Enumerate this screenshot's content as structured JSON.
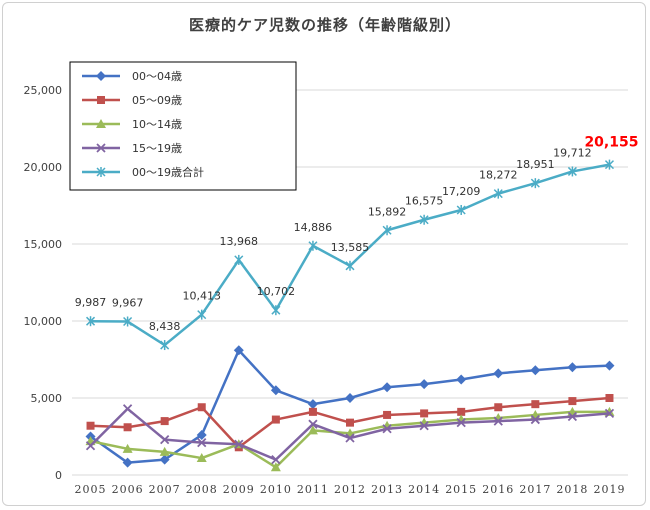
{
  "chart_data": {
    "type": "line",
    "title": "医療的ケア児数の推移（年齢階級別）",
    "xlabel": "",
    "ylabel": "",
    "ylim": [
      0,
      25000
    ],
    "yticks": [
      "0",
      "5,000",
      "10,000",
      "15,000",
      "20,000",
      "25,000"
    ],
    "x": [
      "2005",
      "2006",
      "2007",
      "2008",
      "2009",
      "2010",
      "2011",
      "2012",
      "2013",
      "2014",
      "2015",
      "2016",
      "2017",
      "2018",
      "2019"
    ],
    "grid": true,
    "legend_position": "top-left",
    "series": [
      {
        "name": "00～04歳",
        "color": "#4472c4",
        "marker": "diamond",
        "values": [
          2500,
          800,
          1000,
          2600,
          8100,
          5500,
          4600,
          5000,
          5700,
          5900,
          6200,
          6600,
          6800,
          7000,
          7100
        ]
      },
      {
        "name": "05～09歳",
        "color": "#c0504d",
        "marker": "square",
        "values": [
          3200,
          3100,
          3500,
          4400,
          1800,
          3600,
          4100,
          3400,
          3900,
          4000,
          4100,
          4400,
          4600,
          4800,
          5000
        ]
      },
      {
        "name": "10～14歳",
        "color": "#9bbb59",
        "marker": "triangle",
        "values": [
          2200,
          1700,
          1500,
          1100,
          2000,
          500,
          2900,
          2700,
          3200,
          3400,
          3600,
          3700,
          3900,
          4100,
          4100
        ]
      },
      {
        "name": "15～19歳",
        "color": "#8064a2",
        "marker": "x",
        "values": [
          1900,
          4300,
          2300,
          2100,
          2000,
          1000,
          3300,
          2400,
          3000,
          3200,
          3400,
          3500,
          3600,
          3800,
          4000
        ]
      },
      {
        "name": "00～19歳合計",
        "color": "#4bacc6",
        "marker": "star",
        "values": [
          9987,
          9967,
          8438,
          10413,
          13968,
          10702,
          14886,
          13585,
          15892,
          16575,
          17209,
          18272,
          18951,
          19712,
          20155
        ],
        "labels": [
          "9,987",
          "9,967",
          "8,438",
          "10,413",
          "13,968",
          "10,702",
          "14,886",
          "13,585",
          "15,892",
          "16,575",
          "17,209",
          "18,272",
          "18,951",
          "19,712",
          "20,155"
        ],
        "highlight_color": "#ff0000"
      }
    ]
  }
}
